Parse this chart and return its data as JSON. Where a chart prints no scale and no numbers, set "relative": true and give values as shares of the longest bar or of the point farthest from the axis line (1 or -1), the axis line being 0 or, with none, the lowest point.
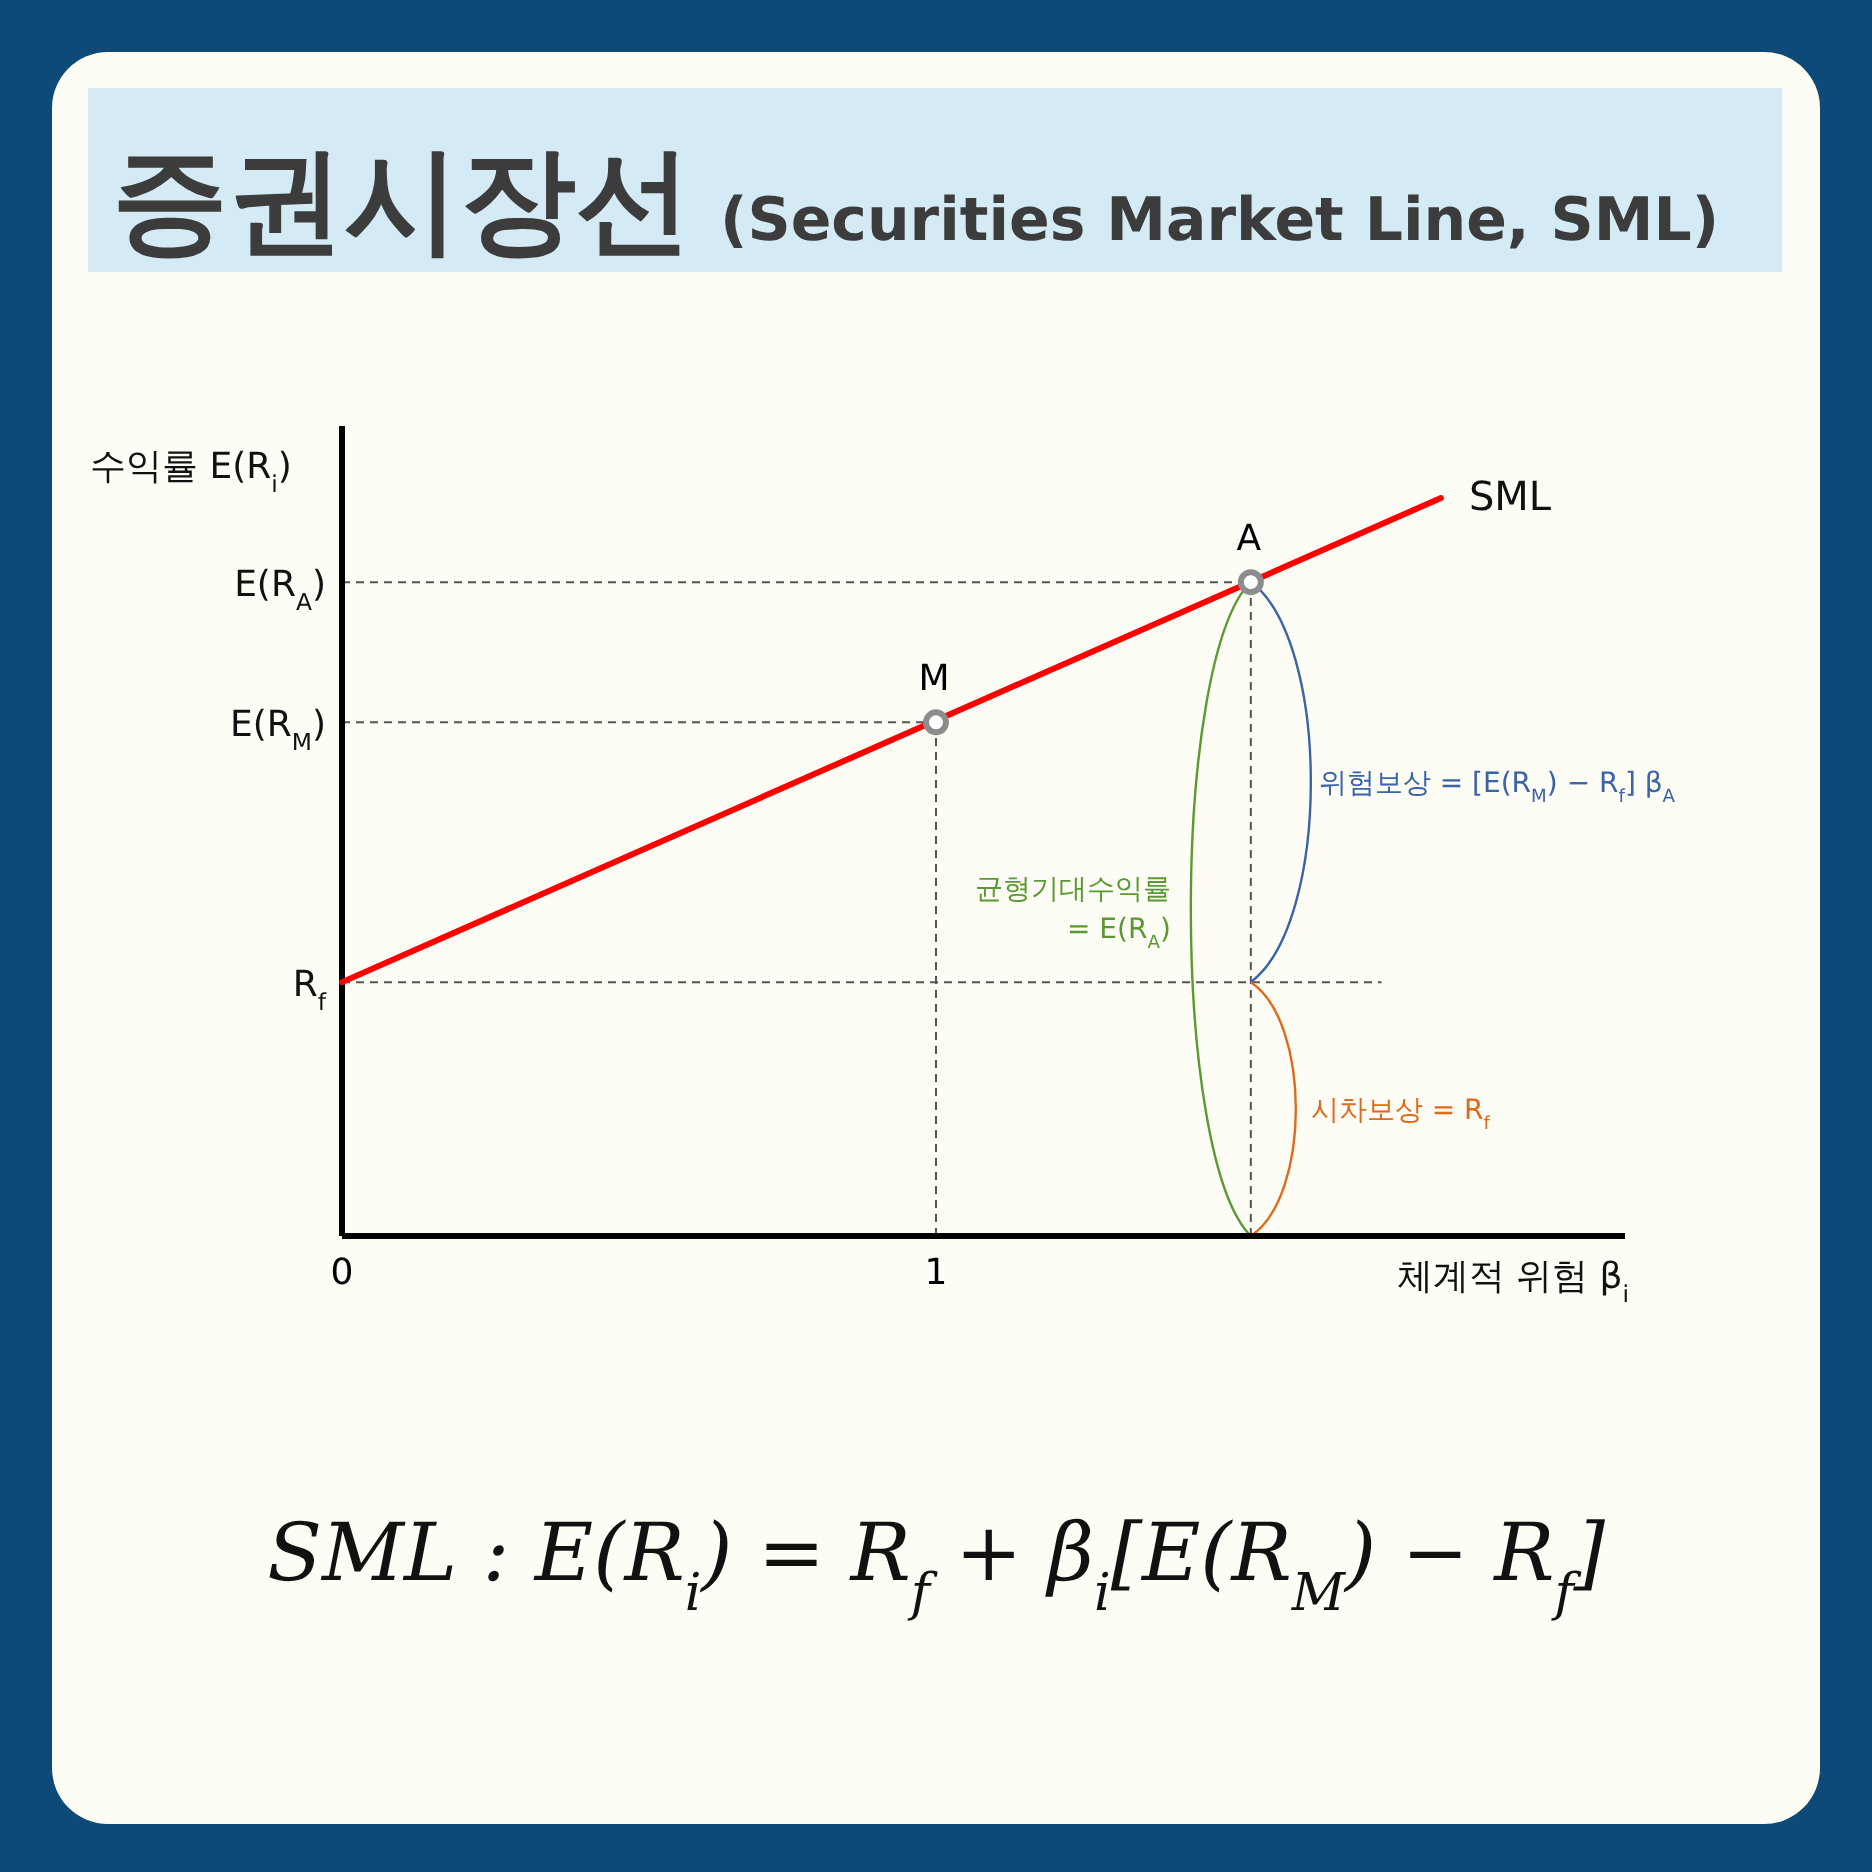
{
  "chart_data": {
    "type": "line",
    "title": "증권시장선",
    "subtitle": "(Securities Market Line, SML)",
    "xlabel": "체계적 위험 β$_{i}$",
    "ylabel": "수익률 E(R$_{i}$)",
    "relative": true,
    "xlim": [
      0,
      2.16
    ],
    "xticks": [
      0,
      1
    ],
    "series": [
      {
        "name": "SML",
        "color": "#ff0000",
        "x": [
          0,
          1.85
        ],
        "values": [
          0.344,
          1
        ]
      },
      {
        "type": "scatter",
        "color": "#8c8c8c",
        "x": [
          1,
          1.53
        ],
        "values": [
          0.696,
          0.886
        ],
        "marker": "circle"
      }
    ],
    "ref_lines": [
      {
        "axis": "y",
        "value": 0.344,
        "label": "R$_{f}$",
        "line_style": "dashed",
        "color": "#555555"
      },
      {
        "axis": "y",
        "value": 0.696,
        "label": "E(R$_{M}$)",
        "line_style": "dashed",
        "color": "#555555"
      },
      {
        "axis": "y",
        "value": 0.886,
        "label": "E(R$_{A}$)",
        "line_style": "dashed",
        "color": "#555555"
      },
      {
        "axis": "x",
        "value": 1,
        "line_style": "dashed",
        "color": "#555555"
      },
      {
        "axis": "x",
        "value": 1.53,
        "line_style": "dashed",
        "color": "#555555"
      }
    ],
    "annotations": [
      {
        "text": "M",
        "x": 1,
        "y": 0.696
      },
      {
        "text": "A",
        "x": 1.53,
        "y": 0.886
      },
      "위험보상 = [E(R$_{M}$) − R$_{f}$] β$_{A}$",
      "균형기대수익률\n= E(R$_{A}$)",
      "시차보상 = R$_{f}$",
      "SML : E(R$_{i}$) = R$_{f}$ + β$_{i}$[E(R$_{M}$) − R$_{f}$]"
    ]
  }
}
